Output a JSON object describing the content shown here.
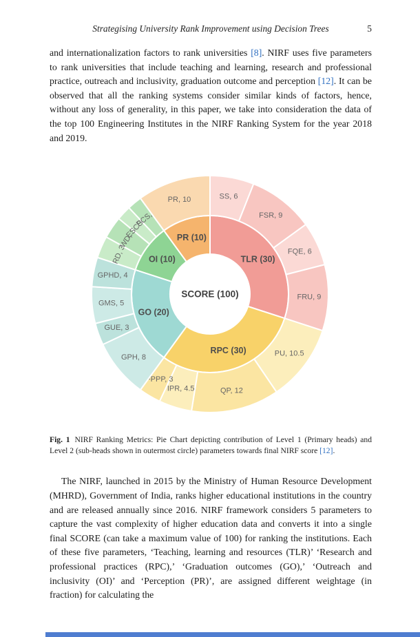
{
  "header": {
    "running_title": "Strategising University Rank Improvement using Decision Trees",
    "page_number": "5"
  },
  "paragraphs": {
    "p1": [
      {
        "t": "and internationalization factors to rank universities "
      },
      {
        "t": "[8]",
        "cite": true
      },
      {
        "t": ". NIRF uses five parameters to rank universities that include teaching and learning, research and professional practice, outreach and inclusivity, graduation outcome and perception "
      },
      {
        "t": "[12]",
        "cite": true
      },
      {
        "t": ". It can be observed that all the ranking systems consider similar kinds of factors, hence, without any loss of generality, in this paper, we take into consideration the data of the top 100 Engineering Institutes in the NIRF Ranking System for the year 2018 and 2019."
      }
    ],
    "p2": [
      {
        "t": "The NIRF, launched in 2015 by the Ministry of Human Resource Development (MHRD), Government of India, ranks higher educational institutions in the country and are released annually since 2016. NIRF framework considers 5 parameters to capture the vast complexity of higher education data and converts it into a single final SCORE (can take a maximum value of 100) for ranking the institutions. Each of these five parameters, ‘Teaching, learning and resources (TLR)’ ‘Research and professional practices (RPC),’ ‘Graduation outcomes (GO),’ ‘Outreach and inclusivity (OI)’ and ‘Perception (PR)’, are assigned different weightage (in fraction) for calculating the"
      }
    ]
  },
  "figure": {
    "caption_label": "Fig. 1",
    "caption": [
      {
        "t": "NIRF Ranking Metrics: Pie Chart depicting contribution of Level 1 (Primary heads) and Level 2 (sub-heads shown in outermost circle) parameters towards final NIRF score "
      },
      {
        "t": "[12]",
        "cite": true
      },
      {
        "t": "."
      }
    ]
  },
  "colors": {
    "citation": "#2f6fc1",
    "bottom_bar": "#4f7dd0"
  },
  "chart_data": {
    "type": "pie",
    "subtype": "sunburst",
    "title": "NIRF Ranking Metrics",
    "center_label": "SCORE (100)",
    "start_angle_deg": 0,
    "direction": "clockwise",
    "total": 100,
    "level1": [
      {
        "label": "TLR (30)",
        "name": "TLR",
        "value": 30,
        "color": "#f19c96"
      },
      {
        "label": "RPC (30)",
        "name": "RPC",
        "value": 30,
        "color": "#f8d269"
      },
      {
        "label": "GO (20)",
        "name": "GO",
        "value": 20,
        "color": "#9ed9d3"
      },
      {
        "label": "OI (10)",
        "name": "OI",
        "value": 10,
        "color": "#8ed494"
      },
      {
        "label": "PR (10)",
        "name": "PR",
        "value": 10,
        "color": "#f5b46d"
      }
    ],
    "level2": [
      {
        "label": "SS, 6",
        "parent": "TLR",
        "value": 6,
        "color": "#fbd9d5"
      },
      {
        "label": "FSR, 9",
        "parent": "TLR",
        "value": 9,
        "color": "#f8c6c1"
      },
      {
        "label": "FQE, 6",
        "parent": "TLR",
        "value": 6,
        "color": "#fbd9d5"
      },
      {
        "label": "FRU, 9",
        "parent": "TLR",
        "value": 9,
        "color": "#f8c6c1"
      },
      {
        "label": "PU, 10.5",
        "parent": "RPC",
        "value": 10.5,
        "color": "#fceebc"
      },
      {
        "label": "QP, 12",
        "parent": "RPC",
        "value": 12,
        "color": "#fbe5a2"
      },
      {
        "label": "IPR, 4.5",
        "parent": "RPC",
        "value": 4.5,
        "color": "#fceebc"
      },
      {
        "label": "FPPP, 3",
        "parent": "RPC",
        "value": 3,
        "color": "#fbe5a2"
      },
      {
        "label": "GPH, 8",
        "parent": "GO",
        "value": 8,
        "color": "#cdeae6"
      },
      {
        "label": "GUE, 3",
        "parent": "GO",
        "value": 3,
        "color": "#bce2dc"
      },
      {
        "label": "GMS, 5",
        "parent": "GO",
        "value": 5,
        "color": "#cdeae6"
      },
      {
        "label": "GPHD, 4",
        "parent": "GO",
        "value": 4,
        "color": "#bce2dc"
      },
      {
        "label": "RD, 3",
        "parent": "OI",
        "value": 3,
        "color": "#c9ebc8"
      },
      {
        "label": "WD, 3",
        "parent": "OI",
        "value": 3,
        "color": "#b6e2b7"
      },
      {
        "label": "ESCS, 2",
        "parent": "OI",
        "value": 2,
        "color": "#c9ebc8"
      },
      {
        "label": "PCS, 2",
        "parent": "OI",
        "value": 2,
        "color": "#b6e2b7"
      },
      {
        "label": "PR, 10",
        "parent": "PR",
        "value": 10,
        "color": "#fad9b0"
      }
    ],
    "rotated_labels": [
      "RD, 3",
      "WD, 3",
      "ESCS, 2",
      "PCS, 2"
    ],
    "label_colors": {
      "inner": "#4d4d4d",
      "outer": "#666666",
      "center": "#404040"
    },
    "legend": "none",
    "grid": false
  }
}
